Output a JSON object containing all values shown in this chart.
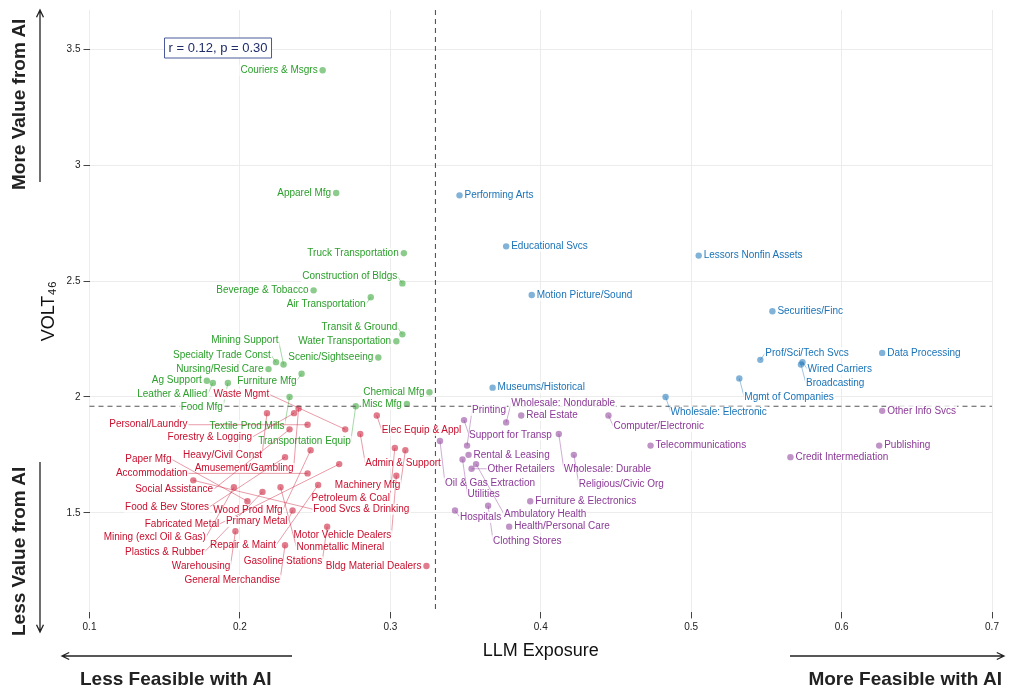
{
  "chart_data": {
    "type": "scatter",
    "xlabel": "LLM Exposure",
    "ylabel": "VOLT₄₆",
    "xlim": [
      0.1,
      0.7
    ],
    "xticks": [
      0.1,
      0.2,
      0.3,
      0.4,
      0.5,
      0.6,
      0.7
    ],
    "ylim": [
      1.07,
      3.67
    ],
    "yticks": [
      1.5,
      2,
      2.5,
      3,
      3.5
    ],
    "grid": true,
    "legend": false,
    "marker": "circle",
    "ref_lines": [
      {
        "axis": "x",
        "value": 0.33,
        "color": "#555555",
        "line_style": "dashed"
      },
      {
        "axis": "y",
        "value": 1.96,
        "color": "#555555",
        "line_style": "dashed"
      }
    ],
    "series": [
      {
        "color": "#2ca02c",
        "x": [
          0.255,
          0.264,
          0.309,
          0.308,
          0.287,
          0.249,
          0.308,
          0.304,
          0.292,
          0.224,
          0.229,
          0.219,
          0.241,
          0.178,
          0.182,
          0.192,
          0.233,
          0.277,
          0.326,
          0.311
        ],
        "values": [
          3.41,
          2.88,
          2.62,
          2.49,
          2.43,
          2.46,
          2.27,
          2.24,
          2.17,
          2.15,
          2.14,
          2.12,
          2.1,
          2.07,
          2.06,
          2.06,
          2.0,
          1.96,
          2.02,
          1.97
        ]
      },
      {
        "color": "#1a73b8",
        "x": [
          0.346,
          0.377,
          0.505,
          0.394,
          0.554,
          0.627,
          0.546,
          0.574,
          0.573,
          0.532,
          0.368,
          0.483
        ],
        "values": [
          2.87,
          2.65,
          2.61,
          2.44,
          2.37,
          2.19,
          2.16,
          2.15,
          2.14,
          2.08,
          2.04,
          2.0
        ]
      },
      {
        "color": "#c8102e",
        "x": [
          0.218,
          0.239,
          0.236,
          0.291,
          0.245,
          0.233,
          0.27,
          0.28,
          0.247,
          0.23,
          0.303,
          0.31,
          0.266,
          0.245,
          0.304,
          0.252,
          0.169,
          0.196,
          0.227,
          0.215,
          0.205,
          0.235,
          0.258,
          0.197,
          0.23,
          0.324
        ],
        "values": [
          1.93,
          1.95,
          1.93,
          1.92,
          1.88,
          1.86,
          1.86,
          1.84,
          1.77,
          1.74,
          1.78,
          1.77,
          1.71,
          1.67,
          1.66,
          1.62,
          1.64,
          1.61,
          1.61,
          1.59,
          1.55,
          1.51,
          1.44,
          1.42,
          1.36,
          1.27
        ]
      },
      {
        "color": "#8b3a97",
        "x": [
          0.627,
          0.445,
          0.387,
          0.349,
          0.377,
          0.412,
          0.333,
          0.351,
          0.473,
          0.625,
          0.352,
          0.422,
          0.566,
          0.348,
          0.357,
          0.354,
          0.393,
          0.365,
          0.343,
          0.379
        ],
        "values": [
          1.94,
          1.92,
          1.92,
          1.9,
          1.89,
          1.84,
          1.81,
          1.79,
          1.79,
          1.79,
          1.75,
          1.75,
          1.74,
          1.73,
          1.71,
          1.69,
          1.55,
          1.53,
          1.51,
          1.44
        ]
      }
    ],
    "annotations": [
      "r = 0.12, p = 0.30",
      "More Value from AI",
      "Less Value from AI",
      "Less Feasible with AI",
      "More Feasible with AI",
      {
        "text": "Couriers & Msgrs",
        "x": 0.255,
        "y": 3.41
      },
      {
        "text": "Apparel Mfg",
        "x": 0.264,
        "y": 2.88
      },
      {
        "text": "Truck Transportation",
        "x": 0.309,
        "y": 2.62
      },
      {
        "text": "Construction of Bldgs",
        "x": 0.308,
        "y": 2.49
      },
      {
        "text": "Air Transportation",
        "x": 0.287,
        "y": 2.43
      },
      {
        "text": "Beverage & Tobacco",
        "x": 0.249,
        "y": 2.46
      },
      {
        "text": "Transit & Ground",
        "x": 0.308,
        "y": 2.27
      },
      {
        "text": "Water Transportation",
        "x": 0.304,
        "y": 2.24
      },
      {
        "text": "Scenic/Sightseeing",
        "x": 0.292,
        "y": 2.17
      },
      {
        "text": "Specialty Trade Const",
        "x": 0.224,
        "y": 2.15
      },
      {
        "text": "Mining Support",
        "x": 0.229,
        "y": 2.14
      },
      {
        "text": "Nursing/Resid Care",
        "x": 0.219,
        "y": 2.12
      },
      {
        "text": "Furniture Mfg",
        "x": 0.241,
        "y": 2.1
      },
      {
        "text": "Ag Support",
        "x": 0.178,
        "y": 2.07
      },
      {
        "text": "Leather & Allied",
        "x": 0.182,
        "y": 2.06
      },
      {
        "text": "Food Mfg",
        "x": 0.192,
        "y": 2.06
      },
      {
        "text": "Textile Prod Mills",
        "x": 0.233,
        "y": 2.0
      },
      {
        "text": "Transportation Equip",
        "x": 0.277,
        "y": 1.96
      },
      {
        "text": "Chemical Mfg",
        "x": 0.326,
        "y": 2.02
      },
      {
        "text": "Misc Mfg",
        "x": 0.311,
        "y": 1.97
      },
      {
        "text": "Performing Arts",
        "x": 0.346,
        "y": 2.87
      },
      {
        "text": "Educational Svcs",
        "x": 0.377,
        "y": 2.65
      },
      {
        "text": "Lessors Nonfin Assets",
        "x": 0.505,
        "y": 2.61
      },
      {
        "text": "Motion Picture/Sound",
        "x": 0.394,
        "y": 2.44
      },
      {
        "text": "Securities/Finc",
        "x": 0.554,
        "y": 2.37
      },
      {
        "text": "Data Processing",
        "x": 0.627,
        "y": 2.19
      },
      {
        "text": "Prof/Sci/Tech Svcs",
        "x": 0.546,
        "y": 2.16
      },
      {
        "text": "Wired Carriers",
        "x": 0.574,
        "y": 2.15
      },
      {
        "text": "Broadcasting",
        "x": 0.573,
        "y": 2.14
      },
      {
        "text": "Mgmt of Companies",
        "x": 0.532,
        "y": 2.08
      },
      {
        "text": "Museums/Historical",
        "x": 0.368,
        "y": 2.04
      },
      {
        "text": "Wholesale: Electronic",
        "x": 0.483,
        "y": 2.0
      },
      {
        "text": "Heavy/Civil Const",
        "x": 0.218,
        "y": 1.93
      },
      {
        "text": "Amusement/Gambling",
        "x": 0.239,
        "y": 1.95
      },
      {
        "text": "Forestry & Logging",
        "x": 0.236,
        "y": 1.93
      },
      {
        "text": "Elec Equip & Appl",
        "x": 0.291,
        "y": 1.92
      },
      {
        "text": "Personal/Laundry",
        "x": 0.245,
        "y": 1.88
      },
      {
        "text": "Social Assistance",
        "x": 0.233,
        "y": 1.86
      },
      {
        "text": "Waste Mgmt",
        "x": 0.27,
        "y": 1.86
      },
      {
        "text": "Admin & Support",
        "x": 0.28,
        "y": 1.84
      },
      {
        "text": "Wood Prod Mfg",
        "x": 0.247,
        "y": 1.77
      },
      {
        "text": "Food & Bev Stores",
        "x": 0.23,
        "y": 1.74
      },
      {
        "text": "Petroleum & Coal",
        "x": 0.303,
        "y": 1.78
      },
      {
        "text": "Machinery Mfg",
        "x": 0.31,
        "y": 1.77
      },
      {
        "text": "Fabricated Metal",
        "x": 0.266,
        "y": 1.71
      },
      {
        "text": "Accommodation",
        "x": 0.245,
        "y": 1.67
      },
      {
        "text": "Motor Vehicle Dealers",
        "x": 0.304,
        "y": 1.66
      },
      {
        "text": "Repair & Maint",
        "x": 0.252,
        "y": 1.62
      },
      {
        "text": "Food Svcs & Drinking",
        "x": 0.169,
        "y": 1.64
      },
      {
        "text": "Mining (excl Oil & Gas)",
        "x": 0.196,
        "y": 1.61
      },
      {
        "text": "Nonmetallic Mineral",
        "x": 0.227,
        "y": 1.61
      },
      {
        "text": "Plastics & Rubber",
        "x": 0.215,
        "y": 1.59
      },
      {
        "text": "Paper Mfg",
        "x": 0.205,
        "y": 1.55
      },
      {
        "text": "Primary Metal",
        "x": 0.235,
        "y": 1.51
      },
      {
        "text": "Gasoline Stations",
        "x": 0.258,
        "y": 1.44
      },
      {
        "text": "Warehousing",
        "x": 0.197,
        "y": 1.42
      },
      {
        "text": "General Merchandise",
        "x": 0.23,
        "y": 1.36
      },
      {
        "text": "Bldg Material Dealers",
        "x": 0.324,
        "y": 1.27
      },
      {
        "text": "Other Info Svcs",
        "x": 0.627,
        "y": 1.94
      },
      {
        "text": "Computer/Electronic",
        "x": 0.445,
        "y": 1.92
      },
      {
        "text": "Real Estate",
        "x": 0.387,
        "y": 1.92
      },
      {
        "text": "Support for Transp",
        "x": 0.349,
        "y": 1.9
      },
      {
        "text": "Wholesale: Nondurable",
        "x": 0.377,
        "y": 1.89
      },
      {
        "text": "Wholesale: Durable",
        "x": 0.412,
        "y": 1.84
      },
      {
        "text": "Oil & Gas Extraction",
        "x": 0.333,
        "y": 1.81
      },
      {
        "text": "Printing",
        "x": 0.351,
        "y": 1.79
      },
      {
        "text": "Telecommunications",
        "x": 0.473,
        "y": 1.79
      },
      {
        "text": "Publishing",
        "x": 0.625,
        "y": 1.79
      },
      {
        "text": "Rental & Leasing",
        "x": 0.352,
        "y": 1.75
      },
      {
        "text": "Religious/Civic Org",
        "x": 0.422,
        "y": 1.75
      },
      {
        "text": "Credit Intermediation",
        "x": 0.566,
        "y": 1.74
      },
      {
        "text": "Utilities",
        "x": 0.348,
        "y": 1.73
      },
      {
        "text": "Ambulatory Health",
        "x": 0.357,
        "y": 1.71
      },
      {
        "text": "Other Retailers",
        "x": 0.354,
        "y": 1.69
      },
      {
        "text": "Furniture & Electronics",
        "x": 0.393,
        "y": 1.55
      },
      {
        "text": "Clothing Stores",
        "x": 0.365,
        "y": 1.53
      },
      {
        "text": "Hospitals",
        "x": 0.343,
        "y": 1.51
      },
      {
        "text": "Health/Personal Care",
        "x": 0.379,
        "y": 1.44
      }
    ]
  }
}
